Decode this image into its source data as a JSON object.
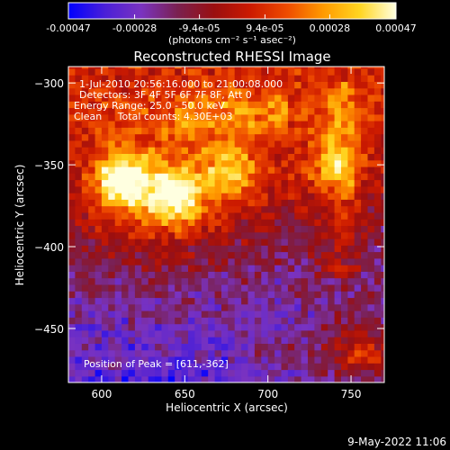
{
  "figure": {
    "footer_date": "9-May-2022 11:06"
  },
  "colorbar": {
    "tick_labels": [
      "-0.00047",
      "-0.00028",
      "-9.4e-05",
      "9.4e-05",
      "0.00028",
      "0.00047"
    ],
    "tick_values": [
      -0.00047,
      -0.00028,
      -9.4e-05,
      9.4e-05,
      0.00028,
      0.00047
    ],
    "range": [
      -0.00047,
      0.00047
    ],
    "unit_label": "(photons cm⁻² s⁻¹ asec⁻²)",
    "colormap": [
      "#0000ff",
      "#4a1fd8",
      "#7a33c0",
      "#7a2050",
      "#9a0f10",
      "#cc1a00",
      "#ee4b00",
      "#ff9a00",
      "#ffd520",
      "#ffffe0"
    ]
  },
  "chart_data": {
    "type": "heatmap",
    "title": "Reconstructed RHESSI Image",
    "xlabel": "Heliocentric X (arcsec)",
    "ylabel": "Heliocentric Y (arcsec)",
    "xlim": [
      580,
      770
    ],
    "ylim": [
      -483,
      -290
    ],
    "xticks": [
      600,
      650,
      700,
      750
    ],
    "yticks": [
      -300,
      -350,
      -400,
      -450
    ],
    "annotations": [
      "1-Jul-2010 20:56:16.000 to 21:00:08.000",
      "Detectors: 3F 4F 5F 6F 7F 8F, Att 0",
      "Energy Range: 25.0 - 50.0 keV",
      "Clean     Total counts: 4.30E+03"
    ],
    "peak_label": "Position of Peak = [611,-362]",
    "peak_position": [
      611,
      -362
    ],
    "sources": [
      {
        "x": 611,
        "y": -362,
        "peak": 0.00047
      },
      {
        "x": 642,
        "y": -372,
        "peak": 0.00043
      },
      {
        "x": 675,
        "y": -355,
        "peak": 0.00026
      },
      {
        "x": 738,
        "y": -352,
        "peak": 0.00024
      },
      {
        "x": 755,
        "y": -465,
        "peak": 0.00021
      }
    ]
  }
}
